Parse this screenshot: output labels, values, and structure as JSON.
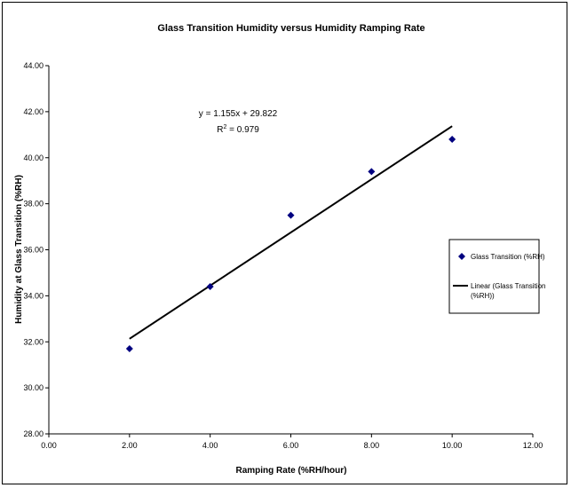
{
  "chart_data": {
    "type": "scatter",
    "title": "Glass Transition Humidity versus Humidity Ramping Rate",
    "xlabel": "Ramping Rate (%RH/hour)",
    "ylabel": "Humidity at Glass Transition (%RH)",
    "xlim": [
      0,
      12
    ],
    "ylim": [
      28,
      44
    ],
    "xticks": [
      "0.00",
      "2.00",
      "4.00",
      "6.00",
      "8.00",
      "10.00",
      "12.00"
    ],
    "yticks": [
      "28.00",
      "30.00",
      "32.00",
      "34.00",
      "36.00",
      "38.00",
      "40.00",
      "42.00",
      "44.00"
    ],
    "grid": false,
    "legend_position": "right",
    "series": [
      {
        "name": "Glass Transition (%RH)",
        "marker": "diamond",
        "color": "#000080",
        "x": [
          2,
          4,
          6,
          8,
          10
        ],
        "y": [
          31.7,
          34.4,
          37.5,
          39.4,
          40.8
        ]
      }
    ],
    "trendline": {
      "name": "Linear (Glass Transition (%RH))",
      "name_lines": [
        "Linear (Glass Transition",
        "(%RH))"
      ],
      "color": "#000000",
      "slope": 1.155,
      "intercept": 29.822,
      "x_range": [
        2,
        10
      ]
    },
    "equation": {
      "line1": "y = 1.155x + 29.822",
      "r2_prefix": "R",
      "r2_sup": "2",
      "r2_suffix": " = 0.979"
    }
  }
}
